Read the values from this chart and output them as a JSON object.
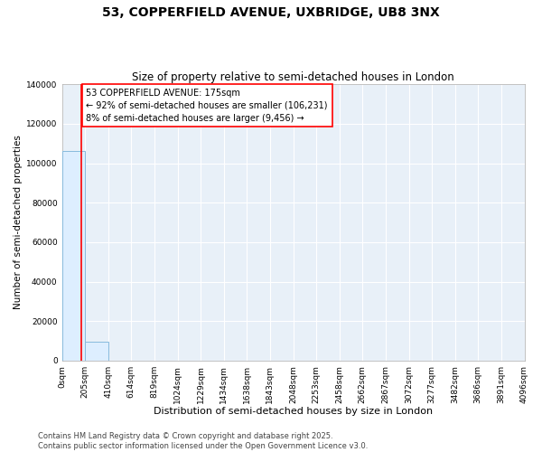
{
  "title": "53, COPPERFIELD AVENUE, UXBRIDGE, UB8 3NX",
  "subtitle": "Size of property relative to semi-detached houses in London",
  "xlabel": "Distribution of semi-detached houses by size in London",
  "ylabel": "Number of semi-detached properties",
  "bin_edges": [
    0,
    205,
    410,
    614,
    819,
    1024,
    1229,
    1434,
    1638,
    1843,
    2048,
    2253,
    2458,
    2662,
    2867,
    3072,
    3277,
    3482,
    3686,
    3891,
    4096
  ],
  "bar_heights": [
    106231,
    9456,
    0,
    0,
    0,
    0,
    0,
    0,
    0,
    0,
    0,
    0,
    0,
    0,
    0,
    0,
    0,
    0,
    0,
    0
  ],
  "bar_color": "#ddeeff",
  "bar_edgecolor": "#88bbdd",
  "property_size": 175,
  "property_line_color": "red",
  "annotation_text": "53 COPPERFIELD AVENUE: 175sqm\n← 92% of semi-detached houses are smaller (106,231)\n8% of semi-detached houses are larger (9,456) →",
  "annotation_box_color": "white",
  "annotation_box_edgecolor": "red",
  "ylim": [
    0,
    140000
  ],
  "yticks": [
    0,
    20000,
    40000,
    60000,
    80000,
    100000,
    120000,
    140000
  ],
  "plot_bg_color": "#e8f0f8",
  "fig_bg_color": "#ffffff",
  "grid_color": "white",
  "footer_text": "Contains HM Land Registry data © Crown copyright and database right 2025.\nContains public sector information licensed under the Open Government Licence v3.0.",
  "title_fontsize": 10,
  "subtitle_fontsize": 8.5,
  "xlabel_fontsize": 8,
  "ylabel_fontsize": 7.5,
  "tick_fontsize": 6.5,
  "annotation_fontsize": 7,
  "footer_fontsize": 6
}
